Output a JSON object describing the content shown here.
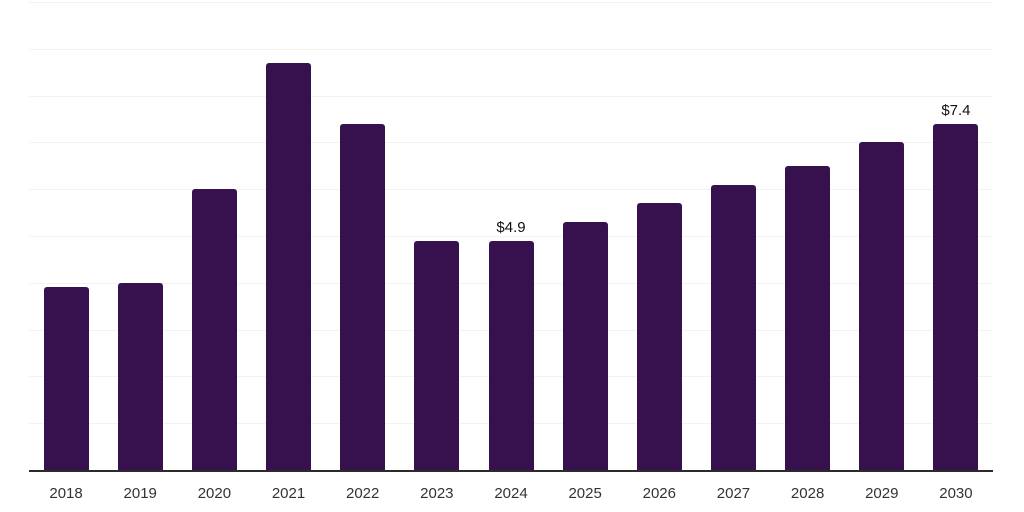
{
  "chart_data": {
    "type": "bar",
    "title": "",
    "xlabel": "",
    "ylabel": "",
    "categories": [
      "2018",
      "2019",
      "2020",
      "2021",
      "2022",
      "2023",
      "2024",
      "2025",
      "2026",
      "2027",
      "2028",
      "2029",
      "2030"
    ],
    "values": [
      3.9,
      4.0,
      6.0,
      8.7,
      7.4,
      4.9,
      4.9,
      5.3,
      5.7,
      6.1,
      6.5,
      7.0,
      7.4
    ],
    "data_labels": [
      "",
      "",
      "",
      "",
      "",
      "",
      "$4.9",
      "",
      "",
      "",
      "",
      "",
      "$7.4"
    ],
    "ylim": [
      0,
      10
    ],
    "grid_step": 1,
    "grid": "horizontal gridlines only, y-axis tick labels hidden",
    "legend": "none",
    "colors": {
      "bar": "#36114d",
      "gridline": "#f2f2f2",
      "axis": "#2b2b2b",
      "tick_label": "#333333",
      "data_label": "#111111",
      "background": "#ffffff"
    }
  }
}
